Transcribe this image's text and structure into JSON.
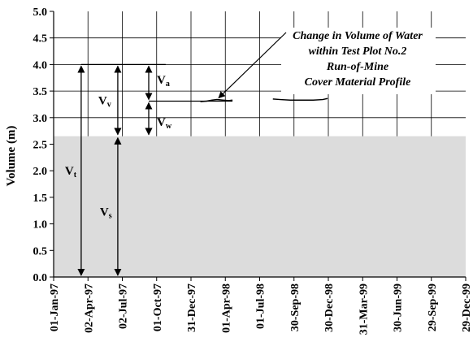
{
  "chart_data": {
    "type": "line",
    "title": "",
    "xlabel": "",
    "ylabel": "Volume (m)",
    "ylim": [
      0,
      5
    ],
    "y_ticks": [
      "0.0",
      "0.5",
      "1.0",
      "1.5",
      "2.0",
      "2.5",
      "3.0",
      "3.5",
      "4.0",
      "4.5",
      "5.0"
    ],
    "x_ticks": [
      "01-Jan-97",
      "02-Apr-97",
      "02-Jul-97",
      "01-Oct-97",
      "31-Dec-97",
      "01-Apr-98",
      "01-Jul-98",
      "30-Sep-98",
      "30-Dec-98",
      "31-Mar-99",
      "30-Jun-99",
      "29-Sep-99",
      "29-Dec-99"
    ],
    "x_range": [
      "1997-01-01",
      "1999-12-29"
    ],
    "grid": true,
    "shaded_region": {
      "from": 0,
      "to": 2.65,
      "color": "#dcdcdc"
    },
    "annotation": {
      "lines": [
        "Change in Volume of Water",
        "within Test Plot No.2",
        "Run-of-Mine",
        "Cover Material Profile"
      ]
    },
    "reference_lines": [
      {
        "y": 4.0,
        "from": "1997-03-15",
        "to": "1997-10-25"
      },
      {
        "y": 3.31,
        "from": "1997-09-10",
        "to": "1998-04-20"
      }
    ],
    "series": [
      {
        "color": "#000000",
        "segments": [
          [
            [
              "1998-01-25",
              3.3
            ],
            [
              "1998-02-10",
              3.31
            ],
            [
              "1998-02-25",
              3.33
            ],
            [
              "1998-03-10",
              3.34
            ],
            [
              "1998-03-25",
              3.33
            ],
            [
              "1998-04-10",
              3.32
            ],
            [
              "1998-04-20",
              3.33
            ]
          ],
          [
            [
              "1998-08-05",
              3.35
            ],
            [
              "1998-08-25",
              3.34
            ],
            [
              "1998-09-20",
              3.33
            ],
            [
              "1998-10-20",
              3.33
            ],
            [
              "1998-11-20",
              3.33
            ],
            [
              "1998-12-15",
              3.34
            ],
            [
              "1998-12-28",
              3.36
            ]
          ]
        ]
      }
    ],
    "arrows": [
      {
        "label": "V",
        "sub": "t",
        "x": "1997-03-15",
        "from": 0,
        "to": 4.0
      },
      {
        "label": "V",
        "sub": "s",
        "x": "1997-06-20",
        "from": 0,
        "to": 2.65
      },
      {
        "label": "V",
        "sub": "v",
        "x": "1997-06-20",
        "from": 2.65,
        "to": 4.0
      },
      {
        "label": "V",
        "sub": "a",
        "x": "1997-09-10",
        "from": 3.31,
        "to": 4.0
      },
      {
        "label": "V",
        "sub": "w",
        "x": "1997-09-10",
        "from": 2.65,
        "to": 3.31
      }
    ]
  }
}
